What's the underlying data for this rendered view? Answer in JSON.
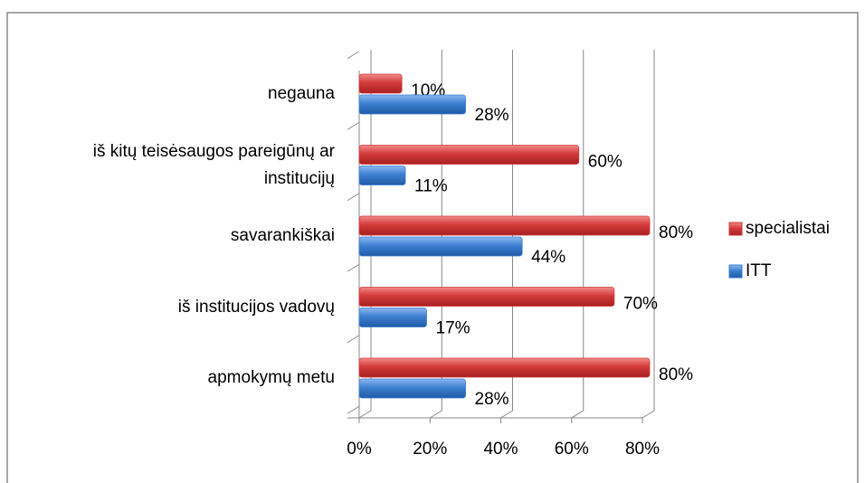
{
  "chart_data": {
    "type": "bar",
    "orientation": "horizontal",
    "categories": [
      "negauna",
      "iš kitų teisėsaugos pareigūnų ar institucijų",
      "savarankiškai",
      "iš institucijos vadovų",
      "apmokymų metu"
    ],
    "series": [
      {
        "name": "specialistai",
        "color": "#d43a3a",
        "values": [
          10,
          60,
          80,
          70,
          80
        ],
        "value_labels": [
          "10%",
          "60%",
          "80%",
          "70%",
          "80%"
        ]
      },
      {
        "name": "ITT",
        "color": "#3d7fd1",
        "values": [
          28,
          11,
          44,
          17,
          28
        ],
        "value_labels": [
          "28%",
          "11%",
          "44%",
          "17%",
          "28%"
        ]
      }
    ],
    "xlim": [
      0,
      80
    ],
    "xticks": [
      {
        "value": 0,
        "label": "0%"
      },
      {
        "value": 20,
        "label": "20%"
      },
      {
        "value": 40,
        "label": "40%"
      },
      {
        "value": 60,
        "label": "60%"
      },
      {
        "value": 80,
        "label": "80%"
      }
    ],
    "grid": true,
    "legend": "right"
  }
}
